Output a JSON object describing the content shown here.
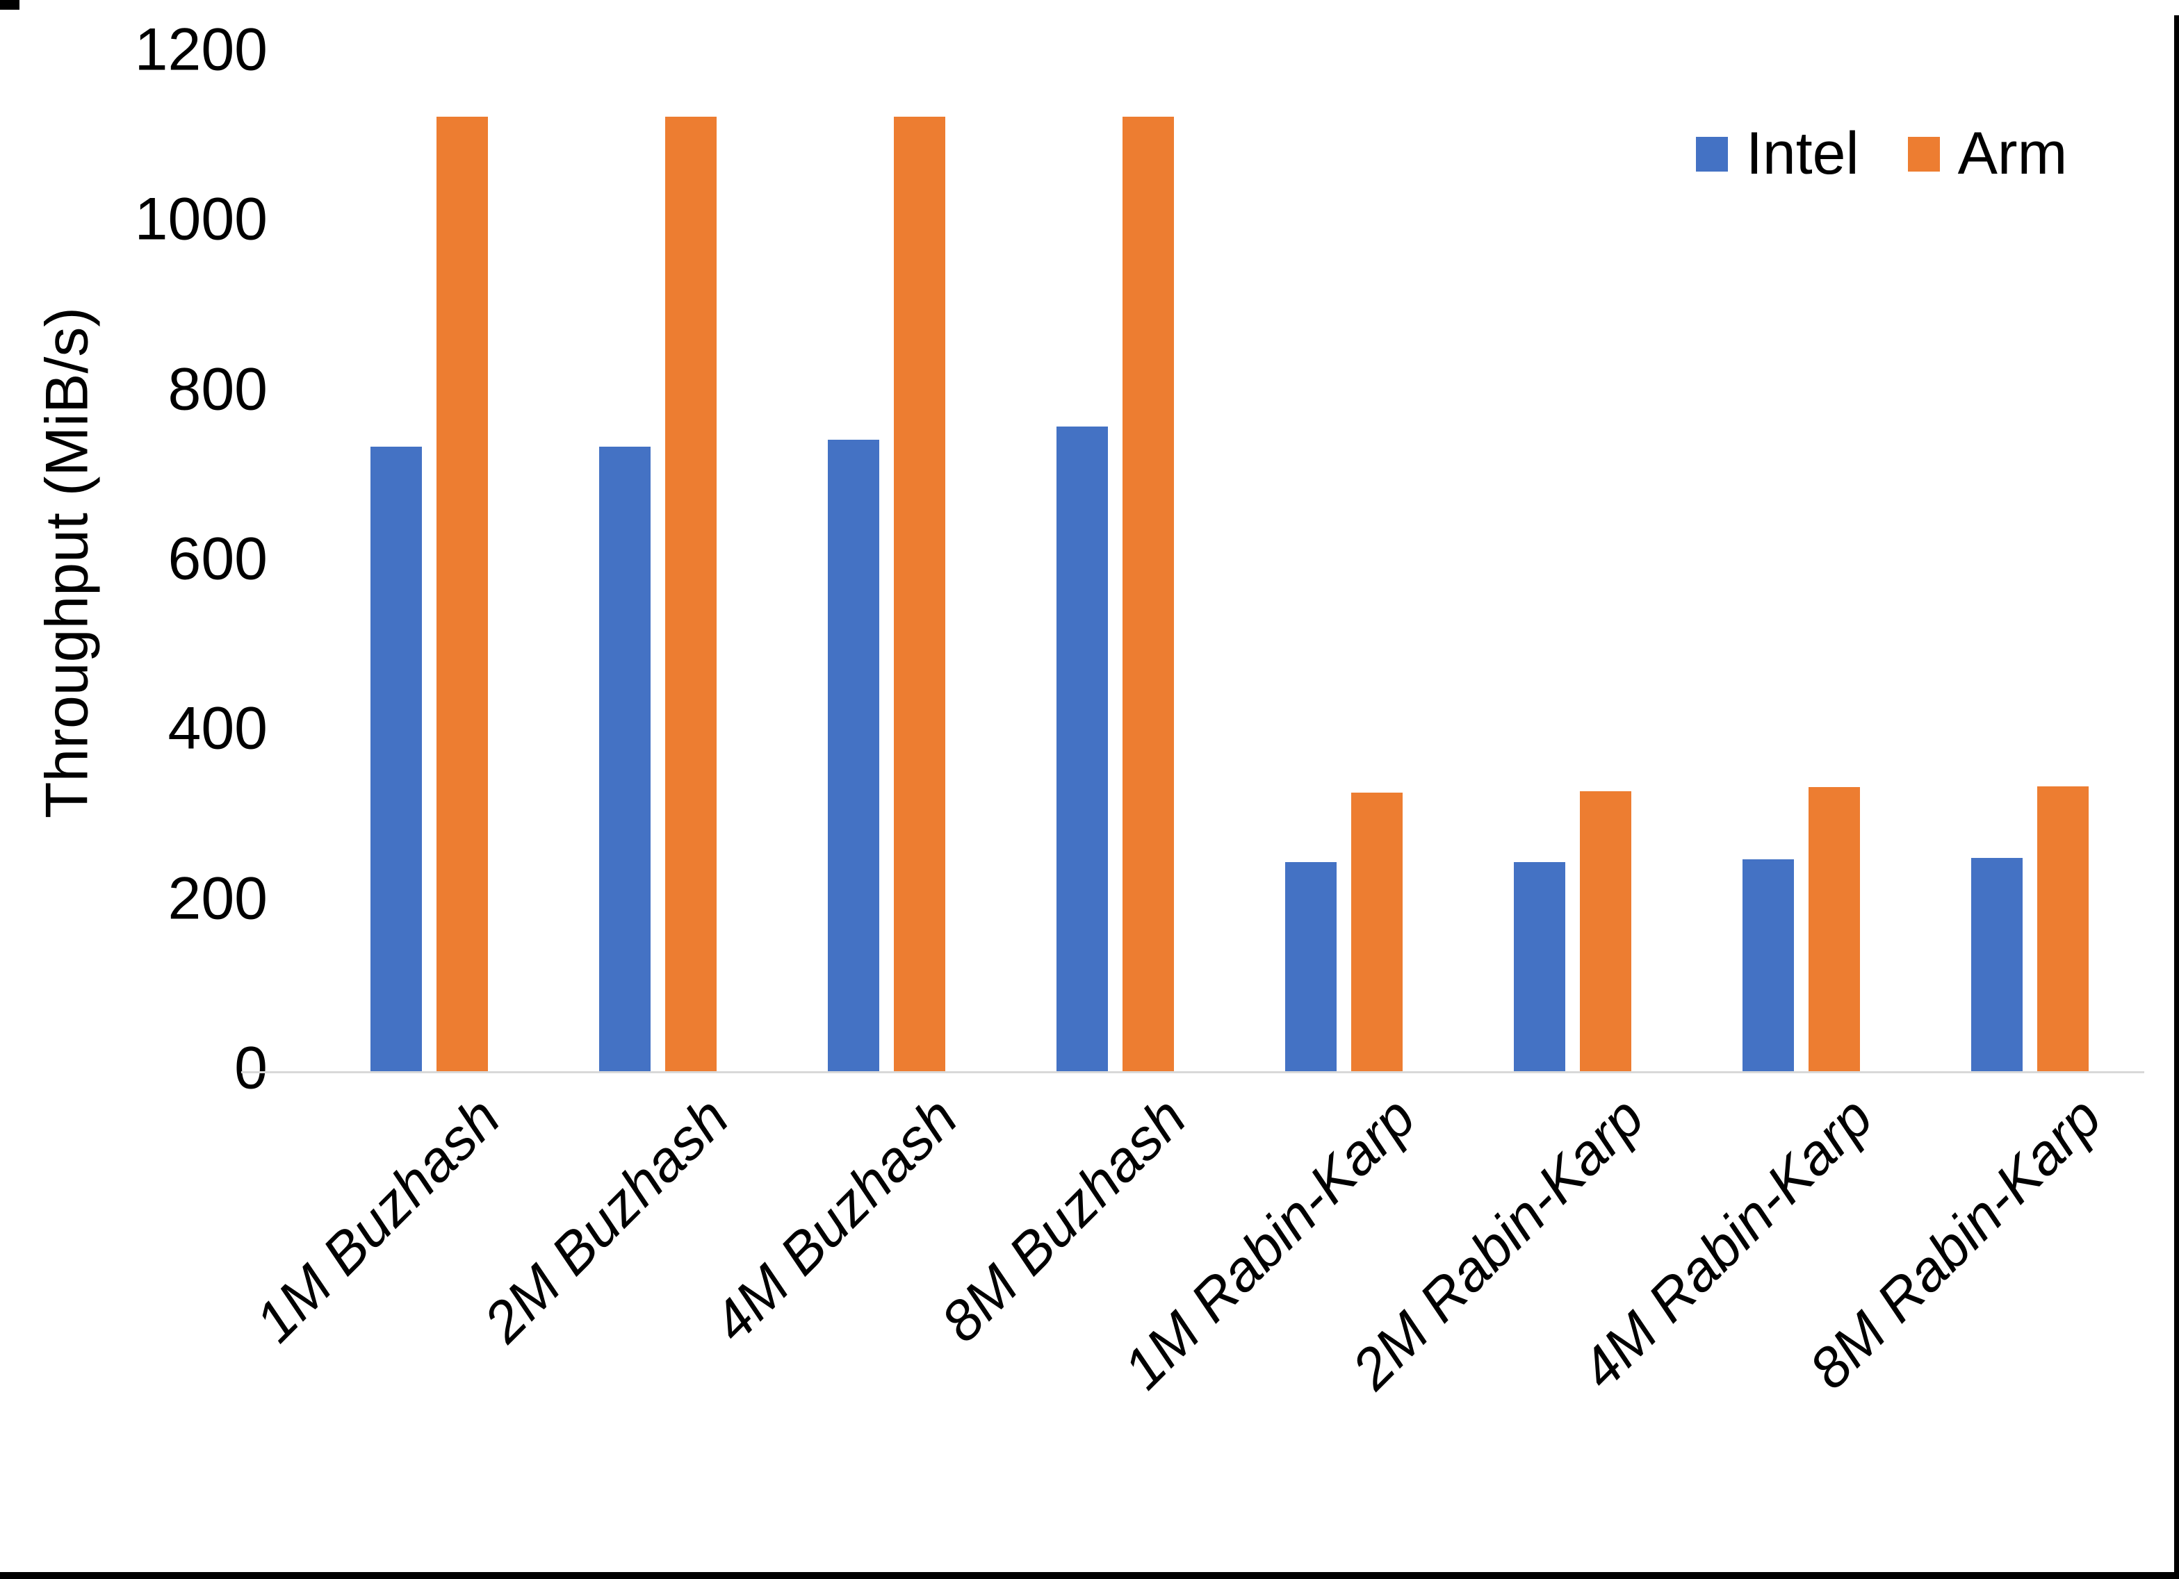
{
  "chart_data": {
    "type": "bar",
    "title": "",
    "xlabel": "",
    "ylabel": "Throughput (MiB/s)",
    "ylim": [
      0,
      1200
    ],
    "yticks": [
      0,
      200,
      400,
      600,
      800,
      1000,
      1200
    ],
    "grid": false,
    "legend_position": "top-right",
    "categories": [
      "1M Buzhash",
      "2M Buzhash",
      "4M Buzhash",
      "8M Buzhash",
      "1M Rabin-Karp",
      "2M Rabin-Karp",
      "4M Rabin-Karp",
      "8M Rabin-Karp"
    ],
    "series": [
      {
        "name": "Intel",
        "color": "#4472C4",
        "values": [
          736,
          736,
          744,
          760,
          246,
          246,
          250,
          251
        ]
      },
      {
        "name": "Arm",
        "color": "#ED7D31",
        "values": [
          1125,
          1125,
          1125,
          1125,
          328,
          330,
          335,
          336
        ]
      }
    ]
  },
  "colors": {
    "axis_line": "#D9D9D9",
    "text": "#000000",
    "window_border": "#000000"
  }
}
